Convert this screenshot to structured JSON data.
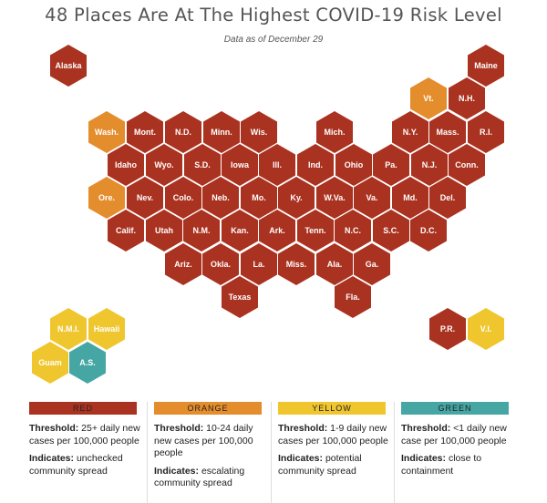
{
  "header": {
    "title": "48 Places Are At The Highest COVID-19 Risk Level",
    "subtitle": "Data as of December 29"
  },
  "colors": {
    "red": "#aa3220",
    "orange": "#e48d2d",
    "yellow": "#f0c62e",
    "green": "#46a6a4"
  },
  "regions": [
    {
      "label": "Alaska",
      "level": "red"
    },
    {
      "label": "Maine",
      "level": "red"
    },
    {
      "label": "Vt.",
      "level": "orange"
    },
    {
      "label": "N.H.",
      "level": "red"
    },
    {
      "label": "Wash.",
      "level": "orange"
    },
    {
      "label": "Mont.",
      "level": "red"
    },
    {
      "label": "N.D.",
      "level": "red"
    },
    {
      "label": "Minn.",
      "level": "red"
    },
    {
      "label": "Wis.",
      "level": "red"
    },
    {
      "label": "Mich.",
      "level": "red"
    },
    {
      "label": "N.Y.",
      "level": "red"
    },
    {
      "label": "Mass.",
      "level": "red"
    },
    {
      "label": "R.I.",
      "level": "red"
    },
    {
      "label": "Idaho",
      "level": "red"
    },
    {
      "label": "Wyo.",
      "level": "red"
    },
    {
      "label": "S.D.",
      "level": "red"
    },
    {
      "label": "Iowa",
      "level": "red"
    },
    {
      "label": "Ill.",
      "level": "red"
    },
    {
      "label": "Ind.",
      "level": "red"
    },
    {
      "label": "Ohio",
      "level": "red"
    },
    {
      "label": "Pa.",
      "level": "red"
    },
    {
      "label": "N.J.",
      "level": "red"
    },
    {
      "label": "Conn.",
      "level": "red"
    },
    {
      "label": "Ore.",
      "level": "orange"
    },
    {
      "label": "Nev.",
      "level": "red"
    },
    {
      "label": "Colo.",
      "level": "red"
    },
    {
      "label": "Neb.",
      "level": "red"
    },
    {
      "label": "Mo.",
      "level": "red"
    },
    {
      "label": "Ky.",
      "level": "red"
    },
    {
      "label": "W.Va.",
      "level": "red"
    },
    {
      "label": "Va.",
      "level": "red"
    },
    {
      "label": "Md.",
      "level": "red"
    },
    {
      "label": "Del.",
      "level": "red"
    },
    {
      "label": "Calif.",
      "level": "red"
    },
    {
      "label": "Utah",
      "level": "red"
    },
    {
      "label": "N.M.",
      "level": "red"
    },
    {
      "label": "Kan.",
      "level": "red"
    },
    {
      "label": "Ark.",
      "level": "red"
    },
    {
      "label": "Tenn.",
      "level": "red"
    },
    {
      "label": "N.C.",
      "level": "red"
    },
    {
      "label": "S.C.",
      "level": "red"
    },
    {
      "label": "D.C.",
      "level": "red"
    },
    {
      "label": "Ariz.",
      "level": "red"
    },
    {
      "label": "Okla.",
      "level": "red"
    },
    {
      "label": "La.",
      "level": "red"
    },
    {
      "label": "Miss.",
      "level": "red"
    },
    {
      "label": "Ala.",
      "level": "red"
    },
    {
      "label": "Ga.",
      "level": "red"
    },
    {
      "label": "Texas",
      "level": "red"
    },
    {
      "label": "Fla.",
      "level": "red"
    },
    {
      "label": "N.M.I.",
      "level": "yellow"
    },
    {
      "label": "Hawaii",
      "level": "yellow"
    },
    {
      "label": "Guam",
      "level": "yellow"
    },
    {
      "label": "A.S.",
      "level": "green"
    },
    {
      "label": "P.R.",
      "level": "red"
    },
    {
      "label": "V.I.",
      "level": "yellow"
    }
  ],
  "legend": [
    {
      "label": "RED",
      "color": "#aa3220",
      "threshold_label": "Threshold:",
      "threshold": "25+ daily new cases per 100,000 people",
      "indicates_label": "Indicates:",
      "indicates": "unchecked community spread"
    },
    {
      "label": "ORANGE",
      "color": "#e48d2d",
      "threshold_label": "Threshold:",
      "threshold": "10-24 daily new cases per 100,000 people",
      "indicates_label": "Indicates:",
      "indicates": "escalating community spread"
    },
    {
      "label": "YELLOW",
      "color": "#f0c62e",
      "threshold_label": "Threshold:",
      "threshold": "1-9 daily new cases per 100,000 people",
      "indicates_label": "Indicates:",
      "indicates": "potential community spread"
    },
    {
      "label": "GREEN",
      "color": "#46a6a4",
      "threshold_label": "Threshold:",
      "threshold": "<1 daily new case per 100,000 people",
      "indicates_label": "Indicates:",
      "indicates": "close to containment"
    }
  ]
}
